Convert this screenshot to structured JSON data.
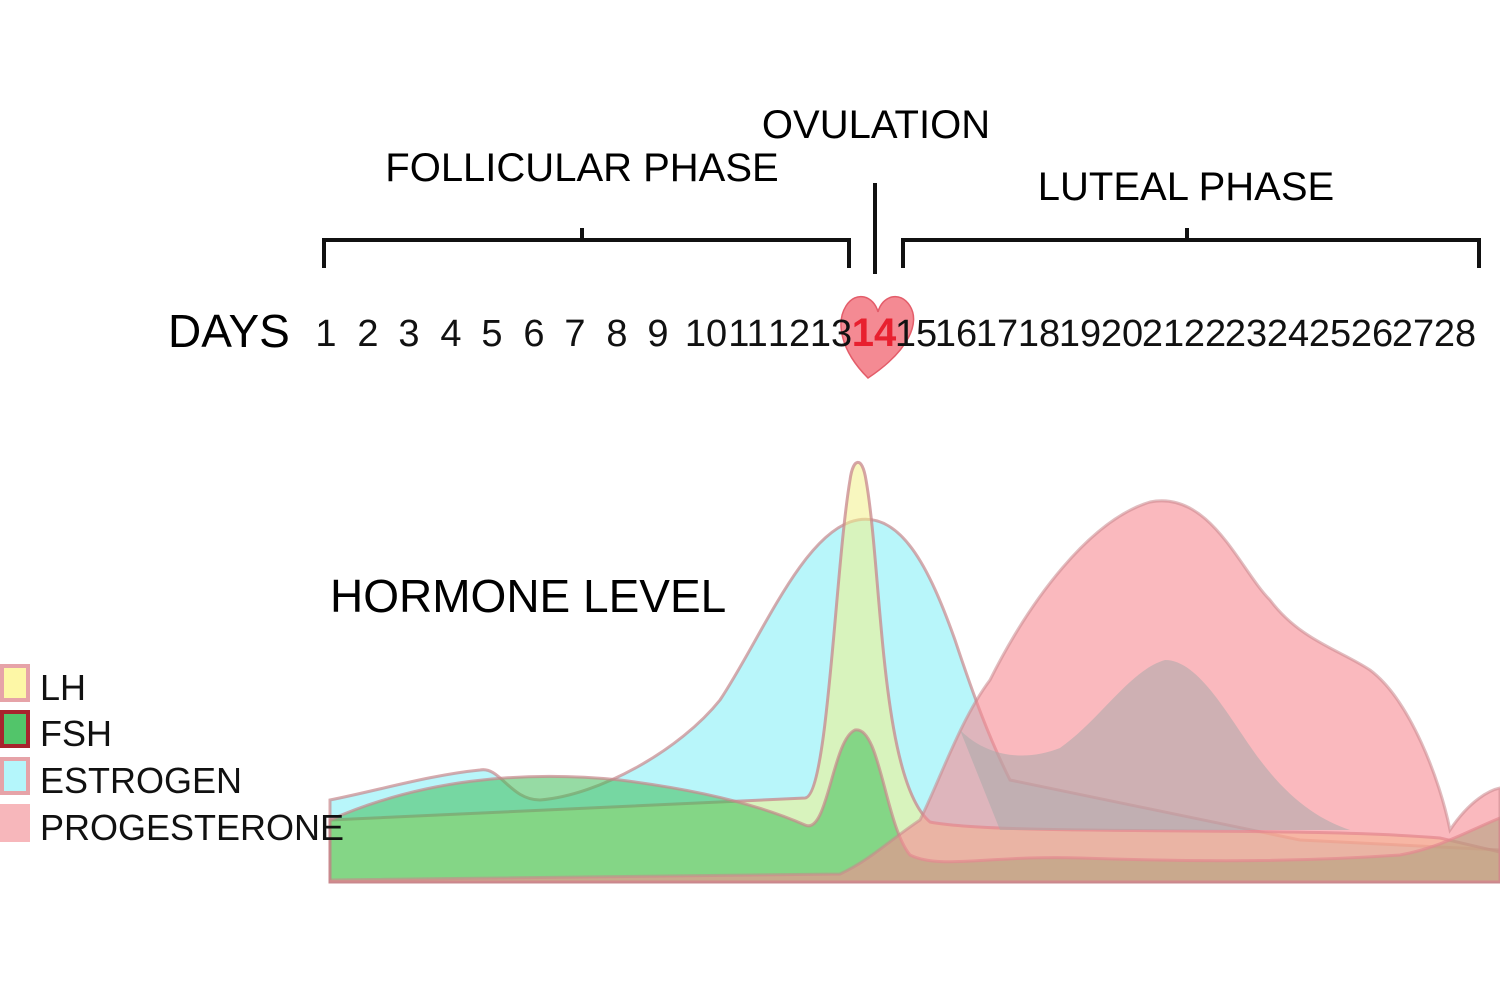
{
  "phases": {
    "follicular": "FOLLICULAR PHASE",
    "ovulation": "OVULATION",
    "luteal": "LUTEAL PHASE"
  },
  "days_label": "DAYS",
  "days": [
    "1",
    "2",
    "3",
    "4",
    "5",
    "6",
    "7",
    "8",
    "9",
    "10",
    "11",
    "12",
    "13",
    "14",
    "15",
    "16",
    "17",
    "18",
    "19",
    "20",
    "21",
    "22",
    "23",
    "24",
    "25",
    "26",
    "27",
    "28"
  ],
  "highlight_day": "14",
  "hormone_label": "HORMONE LEVEL",
  "legend": [
    {
      "name": "LH",
      "fill": "#fdf7a6",
      "border": "#e6a3a8"
    },
    {
      "name": "FSH",
      "fill": "#52c56a",
      "border": "#a8232d"
    },
    {
      "name": "ESTROGEN",
      "fill": "#b4f6fb",
      "border": "#e6a3a8"
    },
    {
      "name": "PROGESTERONE",
      "fill": "#f7b7bb",
      "border": "#f7b7bb"
    }
  ],
  "colors": {
    "heart": "#f48a93",
    "heart_text": "#e8202f",
    "estrogen": "#9af2f8",
    "lh": "#f2f08a",
    "fsh": "#3fbe5a",
    "progesterone": "#f68a92",
    "outline": "#c8878c"
  }
}
